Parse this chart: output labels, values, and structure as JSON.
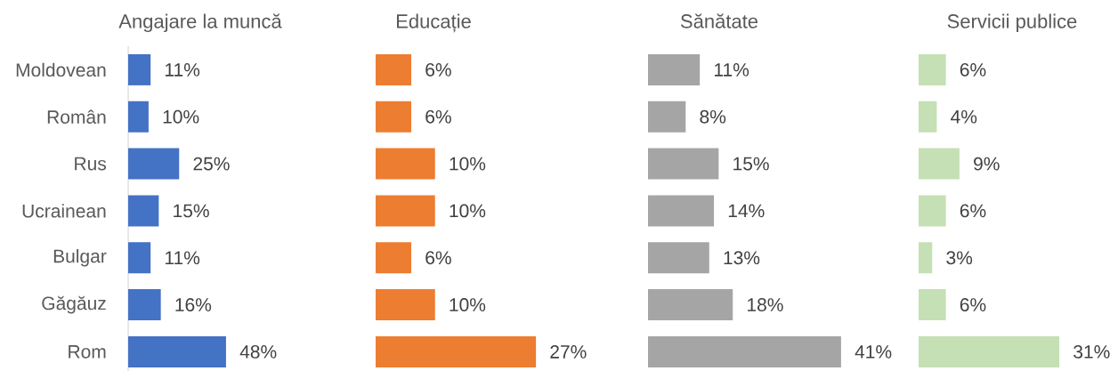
{
  "chart_data": [
    {
      "type": "bar",
      "orientation": "horizontal",
      "title": "Angajare la muncă",
      "categories": [
        "Moldovean",
        "Român",
        "Rus",
        "Ucrainean",
        "Bulgar",
        "Găgăuz",
        "Rom"
      ],
      "values": [
        11,
        10,
        25,
        15,
        11,
        16,
        48
      ],
      "color": "#4472c4",
      "value_labels": [
        "11%",
        "10%",
        "25%",
        "15%",
        "11%",
        "16%",
        "48%"
      ],
      "tick_labels": "y"
    },
    {
      "type": "bar",
      "orientation": "horizontal",
      "title": "Educație",
      "categories": [
        null,
        null,
        null,
        null,
        null,
        null,
        null
      ],
      "values": [
        6,
        6,
        10,
        10,
        6,
        10,
        27
      ],
      "color": "#ed7d31",
      "value_labels": [
        "6%",
        "6%",
        "10%",
        "10%",
        "6%",
        "10%",
        "27%"
      ],
      "tick_labels": false
    },
    {
      "type": "bar",
      "orientation": "horizontal",
      "title": "Sănătate",
      "categories": [
        null,
        null,
        null,
        null,
        null,
        null,
        null
      ],
      "values": [
        11,
        8,
        15,
        14,
        13,
        18,
        41
      ],
      "color": "#a5a5a5",
      "value_labels": [
        "11%",
        "8%",
        "15%",
        "14%",
        "13%",
        "18%",
        "41%"
      ],
      "tick_labels": false
    },
    {
      "type": "bar",
      "orientation": "horizontal",
      "title": "Servicii publice",
      "categories": [
        null,
        null,
        null,
        null,
        null,
        null,
        null
      ],
      "values": [
        6,
        4,
        9,
        6,
        3,
        6,
        31
      ],
      "color": "#c5e0b4",
      "value_labels": [
        "6%",
        "4%",
        "9%",
        "6%",
        "3%",
        "6%",
        "31%"
      ],
      "tick_labels": false
    }
  ]
}
